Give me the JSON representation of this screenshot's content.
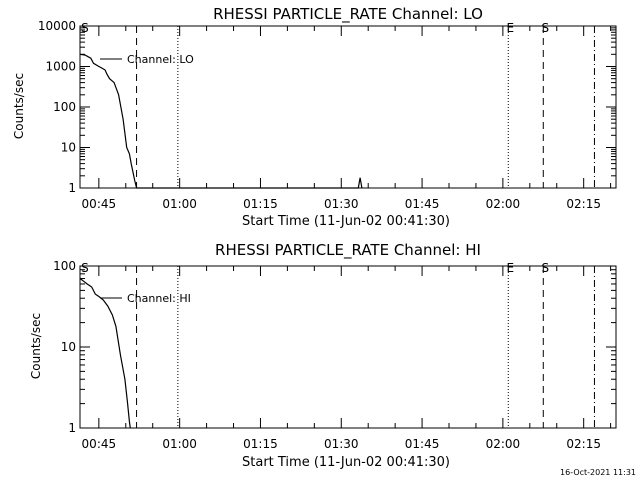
{
  "stamp": "16-Oct-2021 11:31",
  "chart_data": [
    {
      "type": "line",
      "title": "RHESSI PARTICLE_RATE Channel: LO",
      "xlabel": "Start Time (11-Jun-02 00:41:30)",
      "ylabel": "Counts/sec",
      "yscale": "log",
      "ylim": [
        1,
        10000
      ],
      "yticks": [
        1,
        10,
        100,
        1000,
        10000
      ],
      "ytick_labels": [
        "1",
        "10",
        "100",
        "1000",
        "10000"
      ],
      "xlim": [
        "00:41:30",
        "02:21:00"
      ],
      "xticks": [
        "00:45",
        "01:00",
        "01:15",
        "01:30",
        "01:45",
        "02:00",
        "02:15"
      ],
      "legend": {
        "label": "Channel: LO",
        "placement": "top-left"
      },
      "series": [
        {
          "name": "Channel: LO",
          "x": [
            "00:41:30",
            "00:42:30",
            "00:43:30",
            "00:44:00",
            "00:45:00",
            "00:45:40",
            "00:46:10",
            "00:46:30",
            "00:47:00",
            "00:47:50",
            "00:48:40",
            "00:49:30",
            "00:50:10",
            "00:50:40",
            "00:51:00",
            "00:51:40",
            "00:52:00",
            "01:33:10",
            "01:33:30",
            "01:33:50"
          ],
          "y": [
            2000,
            1900,
            1600,
            1200,
            1000,
            900,
            820,
            650,
            500,
            400,
            200,
            50,
            10,
            7,
            4,
            1.5,
            1,
            1,
            1.8,
            1
          ]
        }
      ],
      "markers": [
        {
          "label": "S",
          "time": "00:41:40",
          "style": "none"
        },
        {
          "label": "",
          "time": "00:52:00",
          "style": "dashed"
        },
        {
          "label": "",
          "time": "00:59:40",
          "style": "dotted"
        },
        {
          "label": "E",
          "time": "02:01:00",
          "style": "dotted"
        },
        {
          "label": "S",
          "time": "02:07:30",
          "style": "dashed"
        },
        {
          "label": "",
          "time": "02:17:00",
          "style": "dashdot"
        }
      ]
    },
    {
      "type": "line",
      "title": "RHESSI PARTICLE_RATE Channel: HI",
      "xlabel": "Start Time (11-Jun-02 00:41:30)",
      "ylabel": "Counts/sec",
      "yscale": "log",
      "ylim": [
        1,
        100
      ],
      "yticks": [
        1,
        10,
        100
      ],
      "ytick_labels": [
        "1",
        "10",
        "100"
      ],
      "xlim": [
        "00:41:30",
        "02:21:00"
      ],
      "xticks": [
        "00:45",
        "01:00",
        "01:15",
        "01:30",
        "01:45",
        "02:00",
        "02:15"
      ],
      "legend": {
        "label": "Channel: HI",
        "placement": "top-left"
      },
      "series": [
        {
          "name": "Channel: HI",
          "x": [
            "00:41:30",
            "00:42:10",
            "00:42:50",
            "00:43:40",
            "00:44:20",
            "00:45:00",
            "00:45:50",
            "00:46:40",
            "00:47:30",
            "00:48:10",
            "00:49:00",
            "00:49:50",
            "00:50:20",
            "00:50:40",
            "00:50:50"
          ],
          "y": [
            70,
            65,
            60,
            55,
            45,
            42,
            38,
            32,
            25,
            18,
            8,
            4,
            2,
            1.2,
            1
          ]
        }
      ],
      "markers": [
        {
          "label": "S",
          "time": "00:41:40",
          "style": "none"
        },
        {
          "label": "",
          "time": "00:52:00",
          "style": "dashed"
        },
        {
          "label": "",
          "time": "00:59:40",
          "style": "dotted"
        },
        {
          "label": "E",
          "time": "02:01:00",
          "style": "dotted"
        },
        {
          "label": "S",
          "time": "02:07:30",
          "style": "dashed"
        },
        {
          "label": "",
          "time": "02:17:00",
          "style": "dashdot"
        }
      ]
    }
  ]
}
